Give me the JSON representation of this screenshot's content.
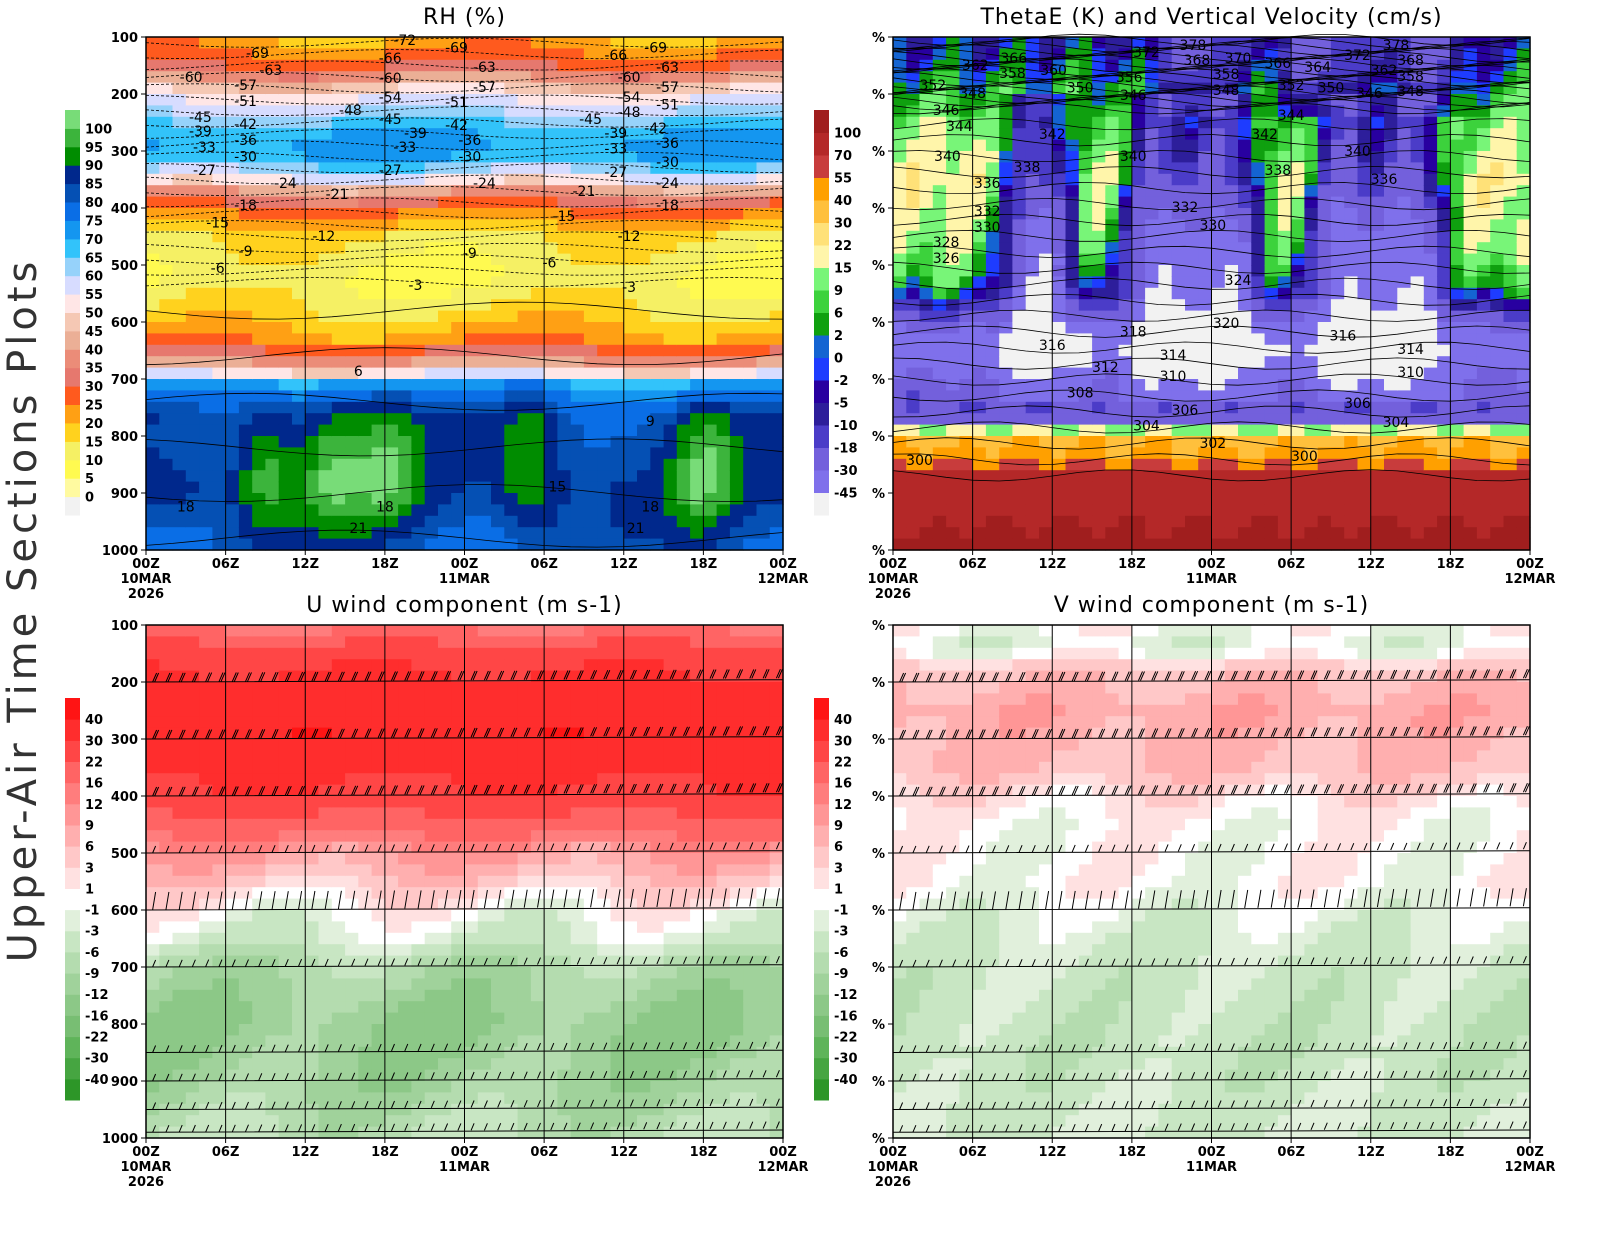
{
  "side_title": "Upper-Air Time Sections Plots",
  "time_axis": {
    "ticks": [
      "00Z",
      "06Z",
      "12Z",
      "18Z",
      "00Z",
      "06Z",
      "12Z",
      "18Z",
      "00Z"
    ],
    "tick_hours": [
      0,
      6,
      12,
      18,
      24,
      30,
      36,
      42,
      48
    ],
    "dates": [
      {
        "hour": 0,
        "label": "10MAR"
      },
      {
        "hour": 24,
        "label": "11MAR"
      },
      {
        "hour": 48,
        "label": "12MAR"
      }
    ],
    "year": "2026"
  },
  "chart_data": [
    {
      "id": "rh",
      "type": "heatmap",
      "title": "RH (%)",
      "xlim": [
        0,
        48
      ],
      "ylim": [
        1000,
        100
      ],
      "y_ticks": [
        "100",
        "200",
        "300",
        "400",
        "500",
        "600",
        "700",
        "800",
        "900",
        "1000"
      ],
      "y_tick_values": [
        100,
        200,
        300,
        400,
        500,
        600,
        700,
        800,
        900,
        1000
      ],
      "colorbar": {
        "labels": [
          "0",
          "5",
          "10",
          "15",
          "20",
          "25",
          "30",
          "35",
          "40",
          "45",
          "50",
          "55",
          "60",
          "65",
          "70",
          "75",
          "80",
          "85",
          "90",
          "95",
          "100"
        ],
        "levels": [
          0,
          5,
          10,
          15,
          20,
          25,
          30,
          35,
          40,
          45,
          50,
          55,
          60,
          65,
          70,
          75,
          80,
          85,
          90,
          95,
          100
        ],
        "colors": [
          "#f2f2f2",
          "#fffaa0",
          "#fffa50",
          "#f5f064",
          "#ffd21e",
          "#ffa014",
          "#ff5a1e",
          "#e6786e",
          "#eb8c78",
          "#ebaf96",
          "#f5c8b4",
          "#ffe6e6",
          "#d7dcff",
          "#96d2fa",
          "#32c3fa",
          "#1496f0",
          "#0a6ee6",
          "#0550b4",
          "#00288c",
          "#008c00",
          "#3cb43c",
          "#78dc78"
        ]
      },
      "contour_labels": [
        [
          "-72",
          19.5,
          105
        ],
        [
          "-69",
          8.4,
          128
        ],
        [
          "-69",
          23.4,
          118
        ],
        [
          "-66",
          35.4,
          132
        ],
        [
          "-69",
          38.4,
          118
        ],
        [
          "-63",
          9.4,
          158
        ],
        [
          "-63",
          25.5,
          153
        ],
        [
          "-63",
          39.3,
          153
        ],
        [
          "-60",
          3.4,
          170
        ],
        [
          "-66",
          18.4,
          137
        ],
        [
          "-60",
          18.4,
          172
        ],
        [
          "-60",
          36.4,
          170
        ],
        [
          "-57",
          7.5,
          184
        ],
        [
          "-57",
          25.5,
          188
        ],
        [
          "-57",
          39.3,
          188
        ],
        [
          "-54",
          18.4,
          205
        ],
        [
          "-54",
          36.4,
          205
        ],
        [
          "-51",
          7.5,
          212
        ],
        [
          "-51",
          23.4,
          214
        ],
        [
          "-51",
          39.3,
          218
        ],
        [
          "-48",
          15.4,
          228
        ],
        [
          "-48",
          36.4,
          232
        ],
        [
          "-45",
          4.1,
          240
        ],
        [
          "-45",
          18.4,
          244
        ],
        [
          "-45",
          33.5,
          244
        ],
        [
          "-42",
          7.5,
          253
        ],
        [
          "-42",
          23.4,
          254
        ],
        [
          "-42",
          38.4,
          260
        ],
        [
          "-39",
          4.1,
          265
        ],
        [
          "-39",
          20.3,
          268
        ],
        [
          "-39",
          35.4,
          268
        ],
        [
          "-36",
          7.5,
          281
        ],
        [
          "-36",
          24.4,
          281
        ],
        [
          "-36",
          39.3,
          286
        ],
        [
          "-33",
          4.4,
          293
        ],
        [
          "-33",
          19.5,
          293
        ],
        [
          "-33",
          35.4,
          296
        ],
        [
          "-30",
          7.5,
          310
        ],
        [
          "-30",
          24.4,
          310
        ],
        [
          "-30",
          39.3,
          319
        ],
        [
          "-27",
          4.4,
          333
        ],
        [
          "-27",
          18.4,
          333
        ],
        [
          "-27",
          35.4,
          337
        ],
        [
          "-24",
          10.5,
          356
        ],
        [
          "-24",
          25.5,
          356
        ],
        [
          "-24",
          39.3,
          356
        ],
        [
          "-21",
          14.4,
          375
        ],
        [
          "-21",
          33.0,
          370
        ],
        [
          "-18",
          7.5,
          395
        ],
        [
          "-18",
          39.3,
          395
        ],
        [
          "-15",
          5.4,
          425
        ],
        [
          "-15",
          31.5,
          414
        ],
        [
          "-12",
          13.4,
          449
        ],
        [
          "-12",
          36.4,
          449
        ],
        [
          "-9",
          7.5,
          475
        ],
        [
          "-9",
          24.4,
          479
        ],
        [
          "-6",
          5.4,
          505
        ],
        [
          "-6",
          30.4,
          496
        ],
        [
          "-3",
          20.3,
          535
        ],
        [
          "-3",
          36.4,
          539
        ],
        [
          "6",
          16.0,
          686
        ],
        [
          "9",
          38.0,
          774
        ],
        [
          "15",
          31.0,
          889
        ],
        [
          "18",
          3.0,
          924
        ],
        [
          "18",
          18.0,
          924
        ],
        [
          "18",
          38.0,
          924
        ],
        [
          "21",
          16.0,
          961
        ],
        [
          "21",
          36.9,
          961
        ]
      ]
    },
    {
      "id": "thetae",
      "type": "heatmap",
      "title": "ThetaE (K) and Vertical Velocity (cm/s)",
      "xlim": [
        0,
        48
      ],
      "ylim": [
        1000,
        100
      ],
      "y_ticks": [
        "%",
        "%",
        "%",
        "%",
        "%",
        "%",
        "%",
        "%",
        "%",
        "%"
      ],
      "y_tick_values": [
        100,
        200,
        300,
        400,
        500,
        600,
        700,
        800,
        900,
        1000
      ],
      "colorbar": {
        "labels": [
          "-45",
          "-30",
          "-18",
          "-10",
          "-5",
          "-2",
          "0",
          "2",
          "6",
          "9",
          "15",
          "22",
          "30",
          "40",
          "55",
          "70",
          "100"
        ],
        "levels": [
          -45,
          -30,
          -18,
          -10,
          -5,
          -2,
          0,
          2,
          6,
          9,
          15,
          22,
          30,
          40,
          55,
          70,
          100
        ],
        "colors": [
          "#f2f2f2",
          "#7f70eb",
          "#7360dc",
          "#4b3cc8",
          "#2d1e9b",
          "#2800a0",
          "#1e3cff",
          "#1464d2",
          "#0fa00f",
          "#3cd23c",
          "#78f578",
          "#fff5aa",
          "#ffe178",
          "#ffc03c",
          "#ffa000",
          "#c83c3c",
          "#b42828",
          "#a01e1e"
        ]
      },
      "contour_labels": [
        [
          "378",
          22.6,
          114
        ],
        [
          "372",
          19.1,
          126
        ],
        [
          "370",
          26.0,
          137
        ],
        [
          "366",
          9.1,
          137
        ],
        [
          "362",
          6.2,
          149
        ],
        [
          "368",
          22.9,
          140
        ],
        [
          "366",
          29.0,
          146
        ],
        [
          "364",
          32.0,
          153
        ],
        [
          "372",
          35.0,
          132
        ],
        [
          "378",
          37.9,
          114
        ],
        [
          "368",
          39.0,
          140
        ],
        [
          "358",
          9.0,
          163
        ],
        [
          "360",
          12.1,
          158
        ],
        [
          "356",
          17.8,
          170
        ],
        [
          "358",
          25.1,
          165
        ],
        [
          "362",
          37.0,
          158
        ],
        [
          "358",
          39.0,
          168
        ],
        [
          "352",
          3.0,
          184
        ],
        [
          "348",
          6.0,
          198
        ],
        [
          "350",
          14.1,
          189
        ],
        [
          "346",
          18.1,
          202
        ],
        [
          "348",
          25.1,
          193
        ],
        [
          "352",
          30.0,
          184
        ],
        [
          "350",
          33.0,
          189
        ],
        [
          "346",
          35.9,
          198
        ],
        [
          "348",
          39.0,
          195
        ],
        [
          "346",
          4.0,
          228
        ],
        [
          "344",
          5.0,
          256
        ],
        [
          "342",
          12.0,
          270
        ],
        [
          "344",
          30.0,
          237
        ],
        [
          "342",
          28.0,
          270
        ],
        [
          "340",
          4.1,
          309
        ],
        [
          "340",
          18.1,
          309
        ],
        [
          "340",
          35.0,
          300
        ],
        [
          "338",
          10.1,
          328
        ],
        [
          "338",
          29.0,
          333
        ],
        [
          "336",
          7.1,
          356
        ],
        [
          "336",
          37.0,
          349
        ],
        [
          "332",
          7.1,
          405
        ],
        [
          "332",
          22.0,
          398
        ],
        [
          "330",
          7.1,
          433
        ],
        [
          "330",
          24.1,
          430
        ],
        [
          "328",
          4.0,
          460
        ],
        [
          "326",
          4.0,
          488
        ],
        [
          "324",
          26.0,
          526
        ],
        [
          "320",
          25.1,
          602
        ],
        [
          "318",
          18.1,
          617
        ],
        [
          "316",
          12.0,
          640
        ],
        [
          "316",
          33.9,
          624
        ],
        [
          "314",
          21.1,
          658
        ],
        [
          "314",
          39.0,
          647
        ],
        [
          "312",
          16.0,
          679
        ],
        [
          "310",
          21.1,
          695
        ],
        [
          "310",
          39.0,
          688
        ],
        [
          "308",
          14.1,
          724
        ],
        [
          "306",
          22.0,
          754
        ],
        [
          "306",
          35.0,
          742
        ],
        [
          "304",
          19.1,
          782
        ],
        [
          "304",
          37.9,
          775
        ],
        [
          "302",
          24.1,
          812
        ],
        [
          "300",
          2.0,
          842
        ],
        [
          "300",
          31.0,
          835
        ]
      ]
    },
    {
      "id": "u",
      "type": "heatmap",
      "title": "U wind component (m s-1)",
      "xlim": [
        0,
        48
      ],
      "ylim": [
        1000,
        100
      ],
      "y_ticks": [
        "100",
        "200",
        "300",
        "400",
        "500",
        "600",
        "700",
        "800",
        "900",
        "1000"
      ],
      "y_tick_values": [
        100,
        200,
        300,
        400,
        500,
        600,
        700,
        800,
        900,
        1000
      ],
      "barb_levels": [
        200,
        300,
        400,
        500,
        600,
        700,
        850,
        900,
        950,
        1000
      ],
      "colorbar": {
        "labels": [
          "-40",
          "-30",
          "-22",
          "-16",
          "-12",
          "-9",
          "-6",
          "-3",
          "-1",
          "1",
          "3",
          "6",
          "9",
          "12",
          "16",
          "22",
          "30",
          "40"
        ],
        "levels": [
          -40,
          -30,
          -22,
          -16,
          -12,
          -9,
          -6,
          -3,
          -1,
          1,
          3,
          6,
          9,
          12,
          16,
          22,
          30,
          40
        ],
        "colors": [
          "#2d9628",
          "#46a541",
          "#5fb45a",
          "#78be73",
          "#8cc887",
          "#a0d29b",
          "#b4dcaf",
          "#c8e6c3",
          "#e1f0dc",
          "#ffffff",
          "#ffe1e1",
          "#ffc8c8",
          "#ffafaf",
          "#ff9696",
          "#ff7d7d",
          "#ff6464",
          "#ff4646",
          "#ff2d2d",
          "#ff1414"
        ]
      },
      "contour_labels": []
    },
    {
      "id": "v",
      "type": "heatmap",
      "title": "V wind component (m s-1)",
      "xlim": [
        0,
        48
      ],
      "ylim": [
        1000,
        100
      ],
      "y_ticks": [
        "%",
        "%",
        "%",
        "%",
        "%",
        "%",
        "%",
        "%",
        "%",
        "%"
      ],
      "y_tick_values": [
        100,
        200,
        300,
        400,
        500,
        600,
        700,
        800,
        900,
        1000
      ],
      "barb_levels": [
        200,
        300,
        400,
        500,
        600,
        700,
        850,
        900,
        950,
        1000
      ],
      "colorbar": {
        "labels": [
          "-40",
          "-30",
          "-22",
          "-16",
          "-12",
          "-9",
          "-6",
          "-3",
          "-1",
          "1",
          "3",
          "6",
          "9",
          "12",
          "16",
          "22",
          "30",
          "40"
        ],
        "levels": [
          -40,
          -30,
          -22,
          -16,
          -12,
          -9,
          -6,
          -3,
          -1,
          1,
          3,
          6,
          9,
          12,
          16,
          22,
          30,
          40
        ],
        "colors": [
          "#2d9628",
          "#46a541",
          "#5fb45a",
          "#78be73",
          "#8cc887",
          "#a0d29b",
          "#b4dcaf",
          "#c8e6c3",
          "#e1f0dc",
          "#ffffff",
          "#ffe1e1",
          "#ffc8c8",
          "#ffafaf",
          "#ff9696",
          "#ff7d7d",
          "#ff6464",
          "#ff4646",
          "#ff2d2d",
          "#ff1414"
        ]
      },
      "contour_labels": []
    }
  ]
}
